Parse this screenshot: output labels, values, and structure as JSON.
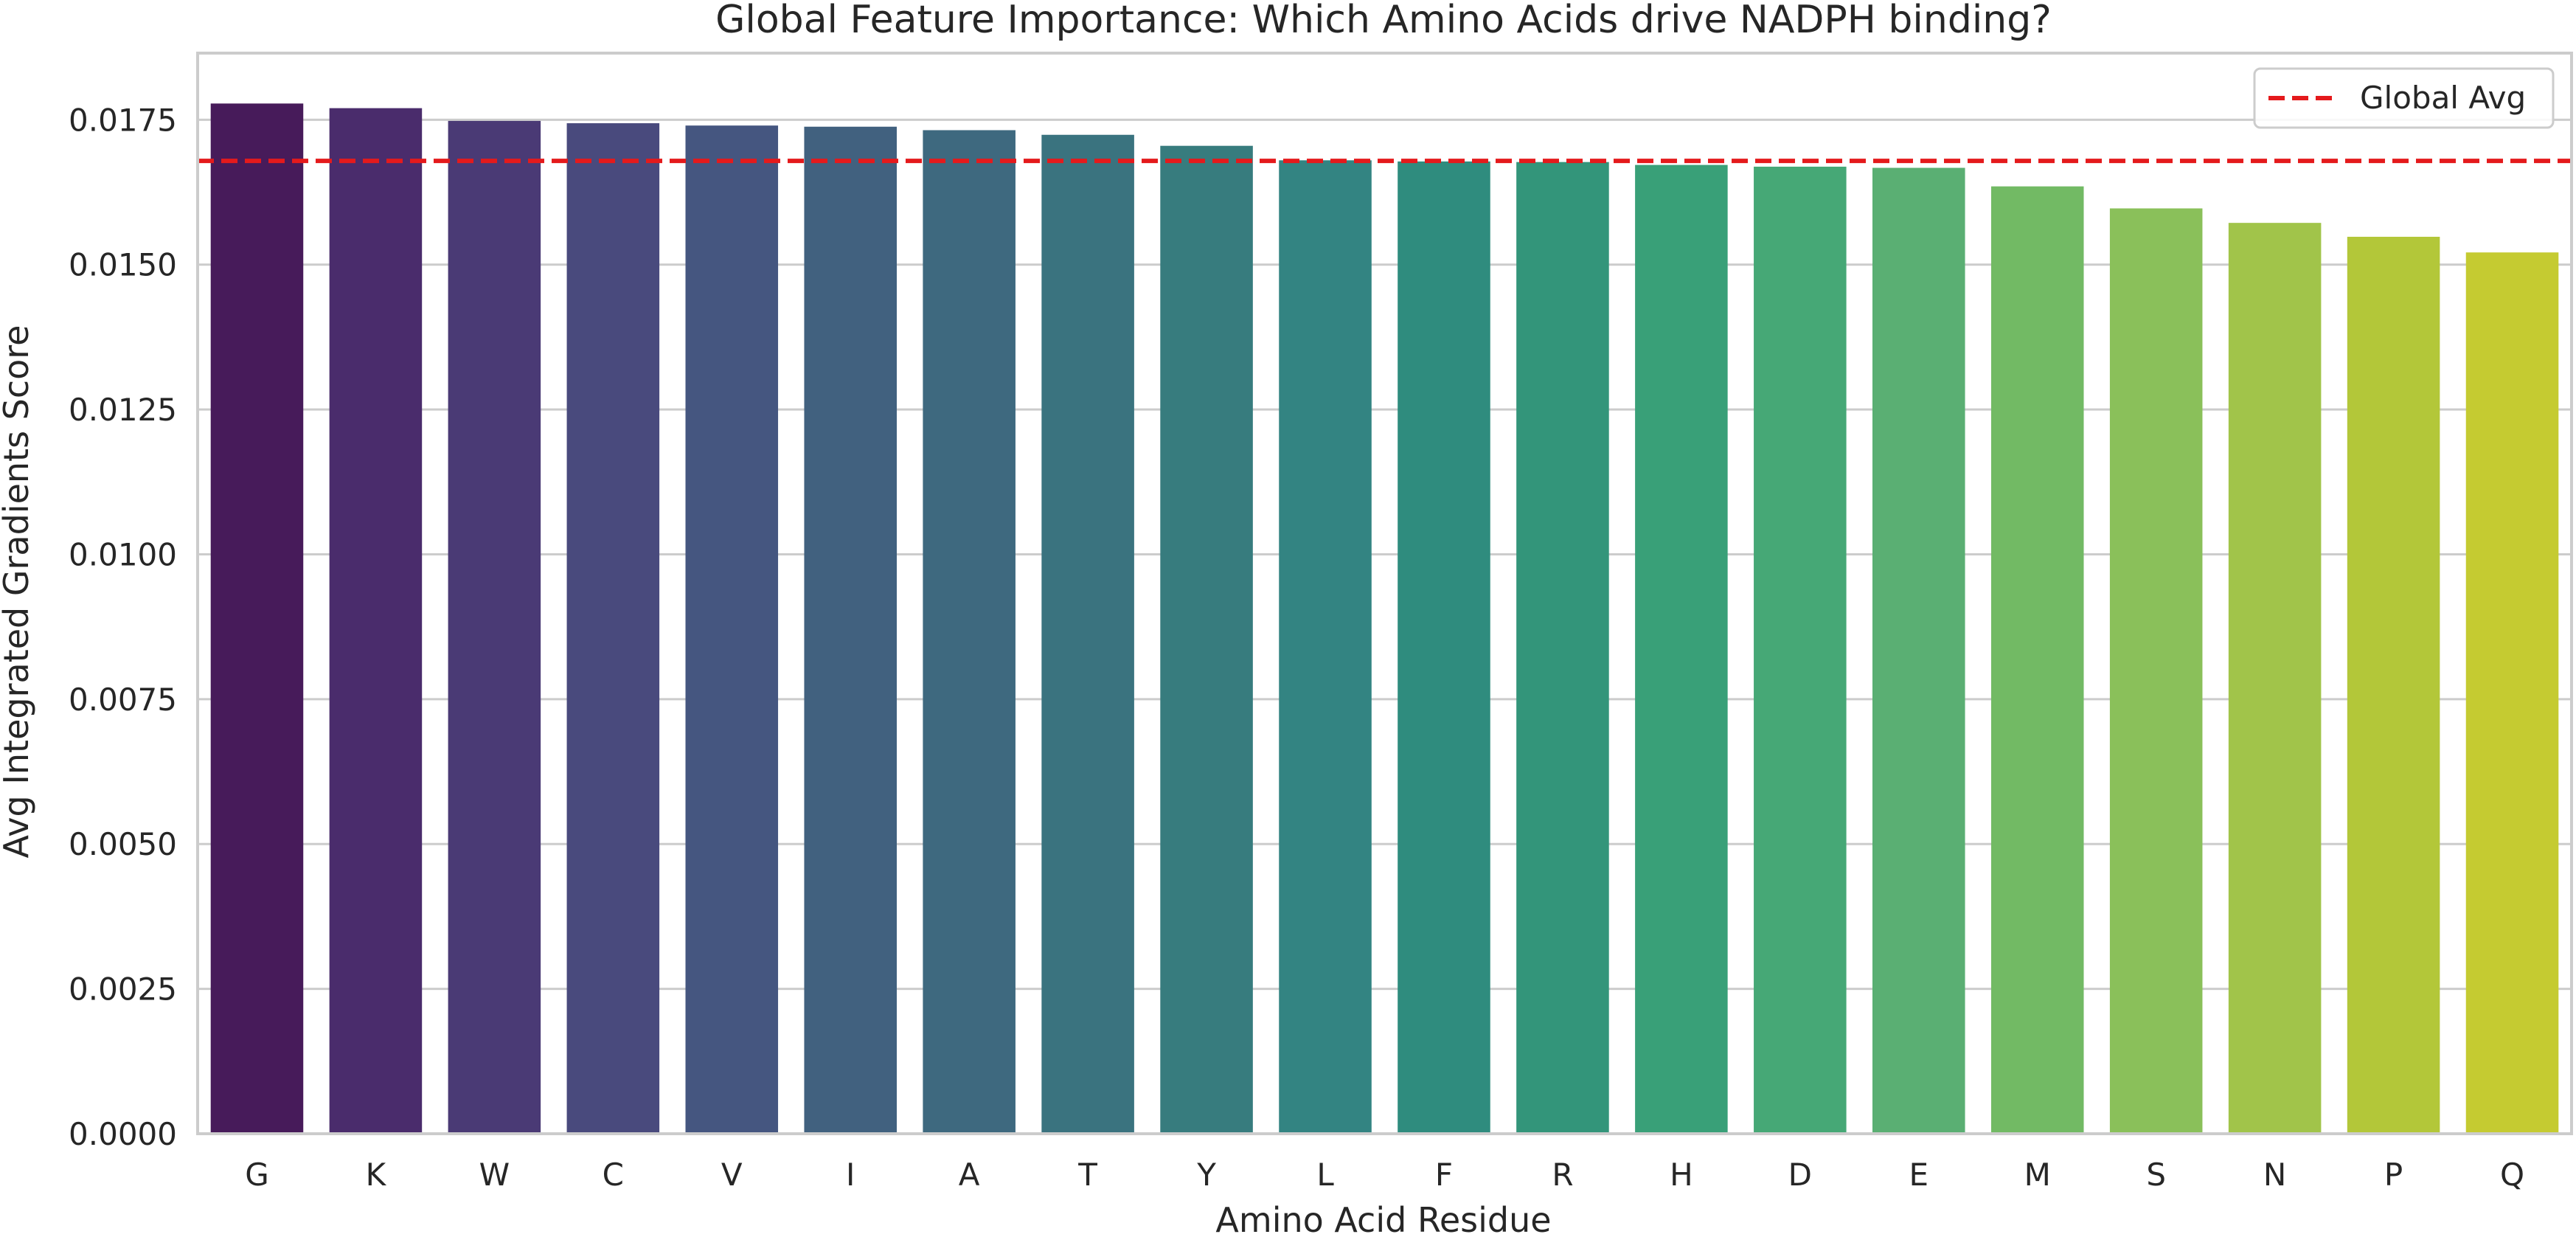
{
  "chart_data": {
    "type": "bar",
    "title": "Global Feature Importance: Which Amino Acids drive NADPH binding?",
    "xlabel": "Amino Acid Residue",
    "ylabel": "Avg Integrated Gradients Score",
    "categories": [
      "G",
      "K",
      "W",
      "C",
      "V",
      "I",
      "A",
      "T",
      "Y",
      "L",
      "F",
      "R",
      "H",
      "D",
      "E",
      "M",
      "S",
      "N",
      "P",
      "Q"
    ],
    "values": [
      0.01778,
      0.0177,
      0.01748,
      0.01744,
      0.0174,
      0.01738,
      0.01732,
      0.01724,
      0.01705,
      0.0168,
      0.01678,
      0.01677,
      0.01672,
      0.01669,
      0.01667,
      0.01635,
      0.01597,
      0.01572,
      0.01548,
      0.01521
    ],
    "colors": [
      "#471B5A",
      "#4A2C6C",
      "#4A3A75",
      "#494A7D",
      "#455680",
      "#41617F",
      "#3E697F",
      "#3A737F",
      "#377C7E",
      "#338482",
      "#2F8C7E",
      "#33957A",
      "#39A078",
      "#46A876",
      "#5AAF73",
      "#72BA64",
      "#8AC05A",
      "#A1C44A",
      "#B3C739",
      "#C5CB31"
    ],
    "yticks": [
      "0.0000",
      "0.0025",
      "0.0050",
      "0.0075",
      "0.0100",
      "0.0125",
      "0.0150",
      "0.0175"
    ],
    "ylim": [
      0,
      0.01865
    ],
    "grid": true,
    "reference_line": {
      "label": "Global Avg",
      "value": 0.01679,
      "color": "#E41A1C",
      "style": "dashed"
    },
    "legend_position": "upper right"
  }
}
